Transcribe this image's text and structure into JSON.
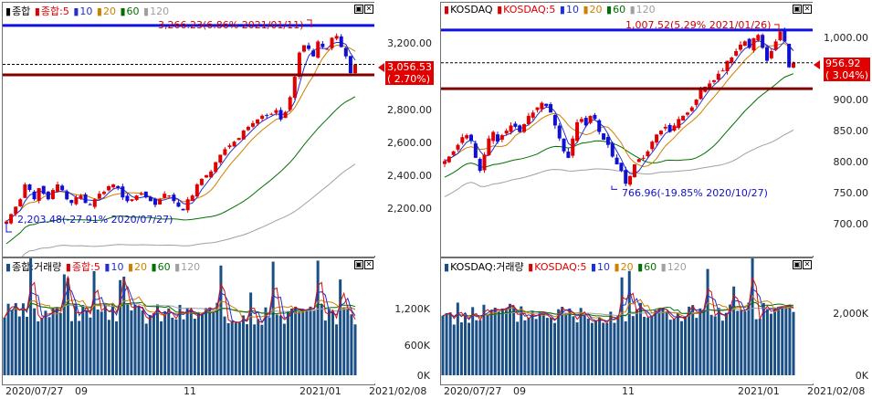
{
  "colors": {
    "up": "#e00000",
    "down": "#1010d0",
    "ma5": "#d01010",
    "ma10": "#2030d0",
    "ma20": "#d08000",
    "ma60": "#007000",
    "ma120": "#a0a0a0",
    "vol": "#1a4f86",
    "blueline": "#1010e0",
    "redline": "#800000"
  },
  "left": {
    "price_legend": {
      "icon": "candle-icon",
      "name": "종합",
      "ma_prefix": "종합:5",
      "ma10": "10",
      "ma20": "20",
      "ma60": "60",
      "ma120": "120"
    },
    "volume_legend": {
      "name": "종합:거래량",
      "ma_prefix": "종합:5",
      "ma10": "10",
      "ma20": "20",
      "ma60": "60",
      "ma120": "120"
    },
    "high_label": "3,266.23(6.86% 2021/01/11)",
    "low_label": "2,203.48(-27.91% 2020/07/27)",
    "price_box": "3,056.53",
    "price_change": "( 2.70%)",
    "yticks": [
      "3,200.00",
      "2,800.00",
      "2,600.00",
      "2,400.00",
      "2,200.00"
    ],
    "vticks": [
      "1,200K",
      "600K",
      "0K"
    ],
    "xticks": [
      "2020/07/27",
      "09",
      "11",
      "2021/01",
      "2021/02/08"
    ]
  },
  "right": {
    "price_legend": {
      "icon": "candle-icon",
      "name": "KOSDAQ",
      "ma_prefix": "KOSDAQ:5",
      "ma10": "10",
      "ma20": "20",
      "ma60": "60",
      "ma120": "120"
    },
    "volume_legend": {
      "name": "KOSDAQ:거래량",
      "ma_prefix": "KOSDAQ:5",
      "ma10": "10",
      "ma20": "20",
      "ma60": "60",
      "ma120": "120"
    },
    "high_label": "1,007.52(5.29% 2021/01/26)",
    "low_label": "766.96(-19.85% 2020/10/27)",
    "price_box": "956.92",
    "price_change": "( 3.04%)",
    "yticks": [
      "1,000.00",
      "900.00",
      "850.00",
      "800.00",
      "750.00",
      "700.00"
    ],
    "vticks": [
      "2,000K",
      "0K"
    ],
    "xticks": [
      "2020/07/27",
      "09",
      "11",
      "2021/01",
      "2021/02/08"
    ]
  },
  "chart_data": [
    {
      "type": "candlestick",
      "title": "종합",
      "ylim": [
        2100,
        3320
      ],
      "high": 3266.23,
      "low": 2203.48,
      "last": 3056.53,
      "x": [
        "2020/07/27",
        "09",
        "11",
        "2021/01",
        "2021/02/08"
      ],
      "close_series": [
        2210,
        2250,
        2290,
        2330,
        2410,
        2380,
        2330,
        2390,
        2360,
        2330,
        2380,
        2410,
        2380,
        2330,
        2310,
        2340,
        2350,
        2310,
        2300,
        2330,
        2360,
        2370,
        2400,
        2410,
        2390,
        2340,
        2320,
        2330,
        2350,
        2360,
        2340,
        2320,
        2300,
        2330,
        2360,
        2350,
        2320,
        2290,
        2270,
        2330,
        2350,
        2410,
        2440,
        2460,
        2480,
        2530,
        2570,
        2600,
        2620,
        2640,
        2660,
        2700,
        2720,
        2740,
        2760,
        2780,
        2780,
        2790,
        2810,
        2760,
        2800,
        2880,
        2990,
        3120,
        3160,
        3140,
        3100,
        3180,
        3150,
        3140,
        3200,
        3210,
        3150,
        3100,
        3010,
        3056
      ]
    },
    {
      "type": "candlestick",
      "title": "KOSDAQ",
      "ylim": [
        680,
        1030
      ],
      "high": 1007.52,
      "low": 766.96,
      "last": 956.92,
      "x": [
        "2020/07/27",
        "09",
        "11",
        "2021/01",
        "2021/02/08"
      ],
      "close_series": [
        805,
        812,
        820,
        830,
        842,
        845,
        836,
        810,
        790,
        815,
        840,
        850,
        835,
        845,
        852,
        860,
        858,
        850,
        862,
        875,
        880,
        888,
        895,
        890,
        880,
        860,
        840,
        820,
        810,
        840,
        865,
        870,
        860,
        875,
        870,
        850,
        838,
        830,
        812,
        800,
        790,
        770,
        782,
        800,
        808,
        810,
        820,
        835,
        846,
        852,
        858,
        850,
        860,
        870,
        875,
        880,
        888,
        900,
        915,
        920,
        925,
        930,
        940,
        945,
        960,
        965,
        975,
        985,
        990,
        980,
        995,
        1000,
        980,
        960,
        975,
        990,
        1005,
        990,
        950,
        957
      ]
    }
  ]
}
